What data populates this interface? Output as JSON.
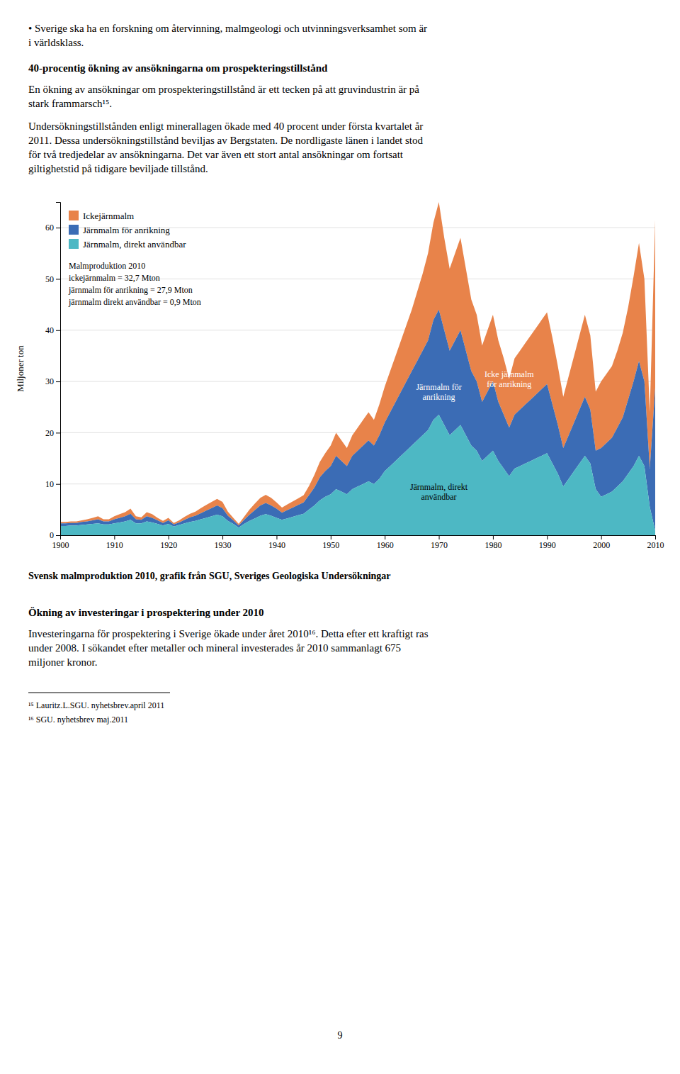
{
  "chart_data": {
    "type": "area",
    "title": "Svensk malmproduktion 2010, grafik från SGU, Sveriges Geologiska Undersökningar",
    "y_label": "Miljoner ton",
    "stacked": true,
    "grid": true,
    "legend": "upper left",
    "xlim": [
      1900,
      2010
    ],
    "ylim": [
      0,
      65
    ],
    "xticks": [
      1900,
      1910,
      1920,
      1930,
      1940,
      1950,
      1960,
      1970,
      1980,
      1990,
      2000,
      2010
    ],
    "yticks": [
      0,
      10,
      20,
      30,
      40,
      50,
      60
    ],
    "annotations": [
      "Malmproduktion 2010\nickejärnmalm = 32,7  Mton\njärnmalm för anrikning = 27,9 Mton\njärnmalm direkt användbar = 0,9 Mton",
      "Icke järnmalm\nför anrikning",
      "Järnmalm för\nanrikning",
      "Järnmalm, direkt\nanvändbar"
    ],
    "x": [
      1900,
      1901,
      1902,
      1903,
      1904,
      1905,
      1906,
      1907,
      1908,
      1909,
      1910,
      1911,
      1912,
      1913,
      1914,
      1915,
      1916,
      1917,
      1918,
      1919,
      1920,
      1921,
      1922,
      1923,
      1924,
      1925,
      1926,
      1927,
      1928,
      1929,
      1930,
      1931,
      1932,
      1933,
      1934,
      1935,
      1936,
      1937,
      1938,
      1939,
      1940,
      1941,
      1942,
      1943,
      1944,
      1945,
      1946,
      1947,
      1948,
      1949,
      1950,
      1951,
      1952,
      1953,
      1954,
      1955,
      1956,
      1957,
      1958,
      1959,
      1960,
      1961,
      1962,
      1963,
      1964,
      1965,
      1966,
      1967,
      1968,
      1969,
      1970,
      1971,
      1972,
      1973,
      1974,
      1975,
      1976,
      1977,
      1978,
      1979,
      1980,
      1981,
      1982,
      1983,
      1984,
      1985,
      1986,
      1987,
      1988,
      1989,
      1990,
      1991,
      1992,
      1993,
      1994,
      1995,
      1996,
      1997,
      1998,
      1999,
      2000,
      2001,
      2002,
      2003,
      2004,
      2005,
      2006,
      2007,
      2008,
      2009,
      2010
    ],
    "series": [
      {
        "name": "Ickejärnmalm",
        "color": "#E8834A",
        "values": [
          0.3,
          0.3,
          0.3,
          0.3,
          0.3,
          0.4,
          0.5,
          0.6,
          0.4,
          0.4,
          0.6,
          0.7,
          0.8,
          1.0,
          0.6,
          0.5,
          0.8,
          0.7,
          0.5,
          0.4,
          0.5,
          0.3,
          0.4,
          0.6,
          0.7,
          0.8,
          1.0,
          1.1,
          1.2,
          1.3,
          1.2,
          0.8,
          0.5,
          0.3,
          0.6,
          1.0,
          1.3,
          1.5,
          1.6,
          1.5,
          1.2,
          1.0,
          1.1,
          1.2,
          1.3,
          1.4,
          1.8,
          2.5,
          3.0,
          3.5,
          4.0,
          4.5,
          4.0,
          3.5,
          4.0,
          4.5,
          5.0,
          5.5,
          5.0,
          6.0,
          7.0,
          8.0,
          9.0,
          10.0,
          11.0,
          12.0,
          13.5,
          15.0,
          17.0,
          19.0,
          21.0,
          18.0,
          16.0,
          17.0,
          18.0,
          16.0,
          14.0,
          13.0,
          11.0,
          12.0,
          13.0,
          12.0,
          11.0,
          9.5,
          11.0,
          11.5,
          12.0,
          12.5,
          13.0,
          13.5,
          14.0,
          13.0,
          11.5,
          10.0,
          11.5,
          13.0,
          14.5,
          16.0,
          14.5,
          11.5,
          13.0,
          13.5,
          14.0,
          15.0,
          16.5,
          18.0,
          20.5,
          23.0,
          20.0,
          11.0,
          32.7
        ]
      },
      {
        "name": "Järnmalm för anrikning",
        "color": "#3B6CB5",
        "values": [
          0.5,
          0.5,
          0.5,
          0.5,
          0.6,
          0.6,
          0.7,
          0.8,
          0.6,
          0.6,
          0.8,
          0.9,
          1.0,
          1.2,
          0.8,
          0.7,
          1.0,
          0.9,
          0.7,
          0.5,
          0.7,
          0.4,
          0.5,
          0.7,
          0.9,
          1.0,
          1.2,
          1.4,
          1.6,
          1.8,
          1.6,
          1.0,
          0.7,
          0.4,
          0.8,
          1.2,
          1.6,
          2.0,
          2.2,
          2.0,
          1.8,
          1.4,
          1.6,
          1.8,
          2.0,
          2.2,
          2.8,
          3.5,
          4.5,
          5.0,
          5.5,
          6.5,
          6.0,
          5.5,
          6.5,
          7.0,
          7.5,
          8.0,
          7.5,
          8.5,
          9.5,
          10.5,
          11.5,
          12.5,
          13.5,
          14.5,
          15.5,
          16.5,
          17.5,
          19.5,
          20.5,
          18.5,
          16.5,
          17.5,
          18.5,
          16.5,
          14.5,
          13.5,
          11.5,
          12.5,
          13.5,
          11.5,
          10.5,
          9.5,
          10.5,
          11.0,
          11.5,
          12.0,
          12.5,
          13.0,
          13.5,
          11.5,
          9.5,
          7.5,
          8.5,
          9.5,
          10.5,
          11.5,
          10.5,
          7.5,
          9.5,
          10.0,
          10.5,
          11.5,
          12.5,
          14.5,
          16.5,
          18.5,
          16.5,
          7.5,
          27.9
        ]
      },
      {
        "name": "Järnmalm, direkt användbar",
        "color": "#4DB8C4",
        "values": [
          1.8,
          1.8,
          1.9,
          1.9,
          2.0,
          2.1,
          2.2,
          2.3,
          2.1,
          2.1,
          2.3,
          2.5,
          2.7,
          3.0,
          2.3,
          2.3,
          2.7,
          2.5,
          2.2,
          1.9,
          2.2,
          1.7,
          2.0,
          2.3,
          2.6,
          2.8,
          3.1,
          3.4,
          3.7,
          4.0,
          3.7,
          2.8,
          2.2,
          1.5,
          2.2,
          2.8,
          3.3,
          3.8,
          4.1,
          3.8,
          3.4,
          3.0,
          3.3,
          3.6,
          3.9,
          4.2,
          5.0,
          5.8,
          6.8,
          7.5,
          8.0,
          9.0,
          8.5,
          8.0,
          9.0,
          9.5,
          10.0,
          10.5,
          10.0,
          11.0,
          12.5,
          13.5,
          14.5,
          15.5,
          16.5,
          17.5,
          18.5,
          19.5,
          20.5,
          22.5,
          23.5,
          21.5,
          19.5,
          20.5,
          21.5,
          19.5,
          17.5,
          16.5,
          14.5,
          15.5,
          16.5,
          14.5,
          13.0,
          11.5,
          13.0,
          13.5,
          14.0,
          14.5,
          15.0,
          15.5,
          16.0,
          14.0,
          12.0,
          9.5,
          11.0,
          12.5,
          14.0,
          15.5,
          14.0,
          9.0,
          7.5,
          8.0,
          8.5,
          9.5,
          10.5,
          12.0,
          13.5,
          15.5,
          13.5,
          5.5,
          0.9
        ]
      }
    ]
  },
  "page_text": {
    "intro": "• Sverige ska ha en forskning om återvinning, malmgeologi och utvinningsverksamhet som är\ni världsklass.",
    "sections": [
      {
        "heading": "40-procentig ökning av ansökningarna om prospekteringstillstånd",
        "paragraphs": [
          "En ökning av ansökningar om prospekteringstillstånd är ett tecken på att gruvindustrin är på\nstark frammarsch¹⁵.",
          "Undersökningstillstånden enligt minerallagen ökade med 40 procent under första kvartalet år\n2011. Dessa undersökningstillstånd beviljas av Bergstaten. De nordligaste länen i landet stod\nför två tredjedelar av ansökningarna. Det var även ett stort antal ansökningar om fortsatt\ngiltighetstid på tidigare beviljade tillstånd."
        ]
      },
      {
        "heading": "Ökning av investeringar i prospektering under 2010",
        "paragraphs": [
          "Investeringarna för prospektering i Sverige ökade under året 2010¹⁶. Detta efter ett kraftigt ras\nunder 2008. I sökandet efter metaller och mineral investerades år 2010 sammanlagt 675\nmiljoner kronor."
        ]
      }
    ],
    "footnotes": [
      "¹⁵ Lauritz.L.SGU. nyhetsbrev.april 2011",
      "¹⁶ SGU. nyhetsbrev maj.2011"
    ],
    "page_number": "9"
  }
}
